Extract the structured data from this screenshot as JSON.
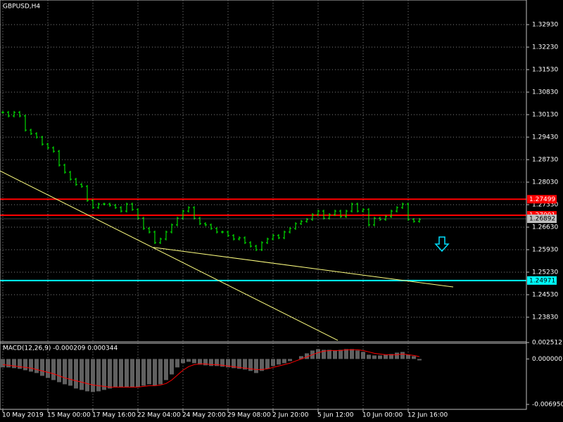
{
  "chart_data": [
    {
      "type": "ohlc",
      "title": "GBPUSD,H4",
      "color": "#00ff00",
      "grid": true,
      "ylim": [
        1.23086,
        1.33696
      ],
      "yticks": [
        {
          "value": 1.3293,
          "label": "1.32930"
        },
        {
          "value": 1.3223,
          "label": "1.32230"
        },
        {
          "value": 1.3153,
          "label": "1.31530"
        },
        {
          "value": 1.3083,
          "label": "1.30830"
        },
        {
          "value": 1.3013,
          "label": "1.30130"
        },
        {
          "value": 1.2943,
          "label": "1.29430"
        },
        {
          "value": 1.2873,
          "label": "1.28730"
        },
        {
          "value": 1.2803,
          "label": "1.28030"
        },
        {
          "value": 1.2733,
          "label": "1.27330"
        },
        {
          "value": 1.2663,
          "label": "1.26630"
        },
        {
          "value": 1.2593,
          "label": "1.25930"
        },
        {
          "value": 1.2523,
          "label": "1.25230"
        },
        {
          "value": 1.2453,
          "label": "1.24530"
        },
        {
          "value": 1.2383,
          "label": "1.23830"
        }
      ],
      "categories": [
        "10 May 2019",
        null,
        null,
        null,
        null,
        null,
        null,
        null,
        "15 May 00:00",
        null,
        null,
        null,
        null,
        null,
        null,
        null,
        "17 May 16:00",
        null,
        null,
        null,
        null,
        null,
        null,
        null,
        "22 May 04:00",
        null,
        null,
        null,
        null,
        null,
        null,
        null,
        "24 May 20:00",
        null,
        null,
        null,
        null,
        null,
        null,
        null,
        "29 May 08:00",
        null,
        null,
        null,
        null,
        null,
        null,
        null,
        "2 Jun 20:00",
        null,
        null,
        null,
        null,
        null,
        null,
        null,
        "5 Jun 12:00",
        null,
        null,
        null,
        null,
        null,
        null,
        null,
        "10 Jun 00:00",
        null,
        null,
        null,
        null,
        null,
        null,
        null,
        "12 Jun 16:00",
        null,
        null
      ],
      "values": [
        1.302,
        1.3009,
        1.302,
        1.3009,
        1.2965,
        1.2954,
        1.2943,
        1.2921,
        1.291,
        1.2899,
        1.2856,
        1.2834,
        1.2812,
        1.2796,
        1.279,
        1.2746,
        1.2724,
        1.2735,
        1.2735,
        1.2731,
        1.2724,
        1.2713,
        1.2735,
        1.2718,
        1.2691,
        1.2659,
        1.2648,
        1.2615,
        1.2626,
        1.2648,
        1.267,
        1.2691,
        1.2713,
        1.2724,
        1.2691,
        1.2674,
        1.267,
        1.2659,
        1.2648,
        1.2648,
        1.2637,
        1.2626,
        1.263,
        1.2615,
        1.2604,
        1.2593,
        1.2615,
        1.2626,
        1.2637,
        1.263,
        1.2648,
        1.2659,
        1.2674,
        1.2681,
        1.2687,
        1.2702,
        1.2713,
        1.2691,
        1.2702,
        1.2713,
        1.2696,
        1.2713,
        1.2735,
        1.2713,
        1.2718,
        1.267,
        1.2691,
        1.2687,
        1.2696,
        1.2713,
        1.2724,
        1.2735,
        1.2687,
        1.2681,
        1.2687
      ],
      "levels": [
        {
          "value": 1.27499,
          "color": "#ff0000"
        },
        {
          "value": 1.27001,
          "color": "#ff0000"
        },
        {
          "value": 1.24971,
          "color": "#00ffff"
        }
      ],
      "current_price": 1.26892,
      "trendlines": [
        {
          "points": [
            [
              -0.5,
              1.2838
            ],
            [
              59.5,
              1.2311
            ]
          ],
          "color": "#ffff80"
        },
        {
          "points": [
            [
              26.75,
              1.26
            ],
            [
              80,
              1.2477
            ]
          ],
          "color": "#ffff80"
        }
      ]
    },
    {
      "type": "macd",
      "title": "MACD(12,26,9) -0.000209 0.000344",
      "ylim": [
        -0.00695,
        0.002512
      ],
      "yticks": [
        {
          "value": 0.002512,
          "label": "0.002512"
        },
        {
          "value": 0,
          "label": "0.000000"
        },
        {
          "value": -0.00695,
          "label": "-0.006950"
        }
      ],
      "series": [
        {
          "color": "#c0c0c0",
          "values": [
            -0.00129,
            -0.00129,
            -0.0014,
            -0.00151,
            -0.00172,
            -0.00194,
            -0.00215,
            -0.00258,
            -0.0029,
            -0.00323,
            -0.00355,
            -0.00387,
            -0.00409,
            -0.00452,
            -0.00473,
            -0.00495,
            -0.00505,
            -0.00495,
            -0.00473,
            -0.00452,
            -0.0043,
            -0.0043,
            -0.0043,
            -0.0043,
            -0.0043,
            -0.00409,
            -0.00387,
            -0.00409,
            -0.00387,
            -0.00323,
            -0.00237,
            -0.00129,
            -0.00065,
            -0.00043,
            -0.00065,
            -0.00086,
            -0.00097,
            -0.00108,
            -0.00108,
            -0.00118,
            -0.00129,
            -0.0014,
            -0.00151,
            -0.00161,
            -0.00183,
            -0.00215,
            -0.00183,
            -0.00151,
            -0.00108,
            -0.00086,
            -0.00065,
            -0.00032,
            0,
            0.00043,
            0.00086,
            0.00129,
            0.00151,
            0.0014,
            0.0014,
            0.00129,
            0.0014,
            0.00151,
            0.00151,
            0.00129,
            0.00108,
            0.00065,
            0.00054,
            0.00054,
            0.00065,
            0.00075,
            0.00097,
            0.00108,
            0.00065,
            0.00043,
            -0.00021
          ]
        },
        {
          "color": "#ff0000",
          "values": [
            -0.00086,
            -0.00097,
            -0.00108,
            -0.00118,
            -0.00129,
            -0.0014,
            -0.00161,
            -0.00183,
            -0.00204,
            -0.00226,
            -0.00258,
            -0.0029,
            -0.00312,
            -0.00333,
            -0.00355,
            -0.00376,
            -0.00398,
            -0.00409,
            -0.00419,
            -0.0043,
            -0.0043,
            -0.0043,
            -0.0043,
            -0.0043,
            -0.0043,
            -0.00419,
            -0.00409,
            -0.00409,
            -0.00398,
            -0.00376,
            -0.00323,
            -0.00247,
            -0.00172,
            -0.00118,
            -0.00086,
            -0.00075,
            -0.00075,
            -0.00086,
            -0.00086,
            -0.00097,
            -0.00108,
            -0.00118,
            -0.00129,
            -0.0014,
            -0.00151,
            -0.00161,
            -0.00161,
            -0.00151,
            -0.00129,
            -0.00108,
            -0.00086,
            -0.00065,
            -0.00032,
            0,
            0.00032,
            0.00065,
            0.00097,
            0.00118,
            0.00129,
            0.00129,
            0.00129,
            0.0014,
            0.0014,
            0.0014,
            0.00129,
            0.00108,
            0.00086,
            0.00075,
            0.00065,
            0.00065,
            0.00065,
            0.00075,
            0.00065,
            0.00054,
            0.000344
          ]
        }
      ]
    }
  ]
}
